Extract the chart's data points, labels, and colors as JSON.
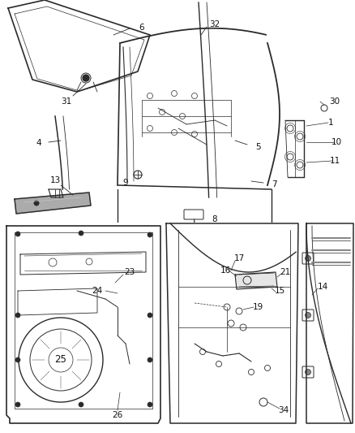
{
  "bg_color": "#ffffff",
  "line_color": "#2a2a2a",
  "label_color": "#111111",
  "font_size": 7.5,
  "figsize": [
    4.38,
    5.33
  ],
  "dpi": 100
}
